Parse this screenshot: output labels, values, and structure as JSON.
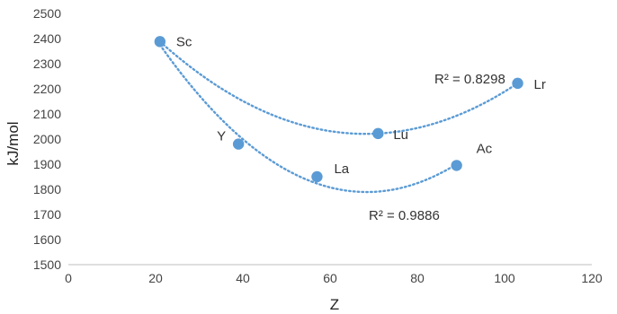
{
  "chart_data": {
    "type": "scatter",
    "title": "",
    "xlabel": "Z",
    "ylabel": "kJ/mol",
    "xlim": [
      0,
      120
    ],
    "ylim": [
      1500,
      2500
    ],
    "x_ticks": [
      "0",
      "20",
      "40",
      "60",
      "80",
      "100",
      "120"
    ],
    "y_ticks": [
      "1500",
      "1600",
      "1700",
      "1800",
      "1900",
      "2000",
      "2100",
      "2200",
      "2300",
      "2400",
      "2500"
    ],
    "grid": false,
    "point_color": "#5B9BD5",
    "trendline_color": "#5B9BD5",
    "points": [
      {
        "label": "Sc",
        "x": 21,
        "y": 2388
      },
      {
        "label": "Y",
        "x": 39,
        "y": 1980
      },
      {
        "label": "La",
        "x": 57,
        "y": 1850
      },
      {
        "label": "Lu",
        "x": 71,
        "y": 2022
      },
      {
        "label": "Ac",
        "x": 89,
        "y": 1895
      },
      {
        "label": "Lr",
        "x": 103,
        "y": 2222
      }
    ],
    "trendlines": [
      {
        "r2_text": "R² = 0.8298",
        "points": [
          "Sc",
          "Lu",
          "Lr"
        ],
        "x_range": [
          21,
          103
        ]
      },
      {
        "r2_text": "R² = 0.9886",
        "points": [
          "Sc",
          "Y",
          "La",
          "Ac"
        ],
        "x_range": [
          21,
          89
        ]
      }
    ]
  }
}
